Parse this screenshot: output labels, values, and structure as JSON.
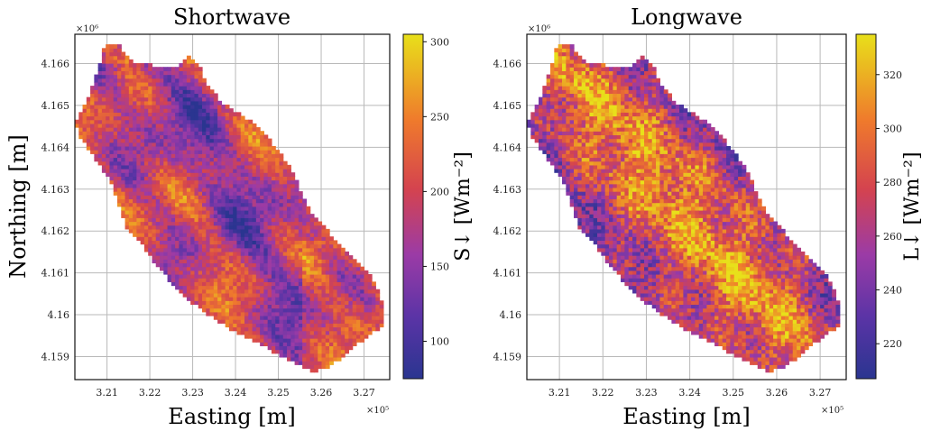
{
  "chart_data": [
    {
      "type": "heatmap",
      "title": "Shortwave",
      "xlabel": "Easting [m]",
      "ylabel": "Northing [m]",
      "colorbar_label": "S↓ [Wm⁻²]",
      "x_ticks": [
        "3.21",
        "3.22",
        "3.23",
        "3.24",
        "3.25",
        "3.26",
        "3.27"
      ],
      "y_ticks": [
        "4.166",
        "4.165",
        "4.164",
        "4.163",
        "4.162",
        "4.161",
        "4.16",
        "4.159"
      ],
      "x_multiplier": "×10⁵",
      "y_multiplier": "×10⁶",
      "xlim": [
        320250,
        327600
      ],
      "ylim": [
        4158450,
        4166700
      ],
      "colorbar_ticks": [
        "300",
        "250",
        "200",
        "150",
        "100"
      ],
      "colorbar_range": [
        75,
        305
      ],
      "grid": true,
      "colormap": "plasma"
    },
    {
      "type": "heatmap",
      "title": "Longwave",
      "xlabel": "Easting [m]",
      "ylabel": "",
      "colorbar_label": "L↓ [Wm⁻²]",
      "x_ticks": [
        "3.21",
        "3.22",
        "3.23",
        "3.24",
        "3.25",
        "3.26",
        "3.27"
      ],
      "y_ticks": [
        "4.166",
        "4.165",
        "4.164",
        "4.163",
        "4.162",
        "4.161",
        "4.16",
        "4.159"
      ],
      "x_multiplier": "×10⁵",
      "y_multiplier": "×10⁶",
      "xlim": [
        320250,
        327600
      ],
      "ylim": [
        4158450,
        4166700
      ],
      "colorbar_ticks": [
        "320",
        "300",
        "280",
        "260",
        "240",
        "220"
      ],
      "colorbar_range": [
        207,
        335
      ],
      "grid": true,
      "colormap": "plasma"
    }
  ]
}
